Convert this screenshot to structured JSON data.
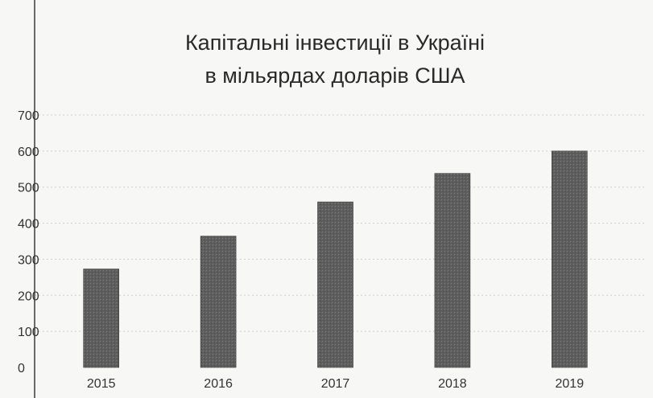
{
  "chart_data": {
    "type": "bar",
    "title_lines": [
      "Капітальні інвестиції в Україні",
      "в мільярдах доларів США"
    ],
    "xlabel": "",
    "ylabel": "",
    "categories": [
      "2015",
      "2016",
      "2017",
      "2018",
      "2019"
    ],
    "values": [
      273,
      364,
      459,
      538,
      600
    ],
    "ylim": [
      0,
      700
    ],
    "yticks": [
      "0",
      "100",
      "200",
      "300",
      "400",
      "500",
      "600",
      "700"
    ],
    "grid": true,
    "legend": "none",
    "colors": {
      "bar": "#5e5e5e",
      "background": "#f7f7f5",
      "grid": "#cfcfcf"
    }
  }
}
